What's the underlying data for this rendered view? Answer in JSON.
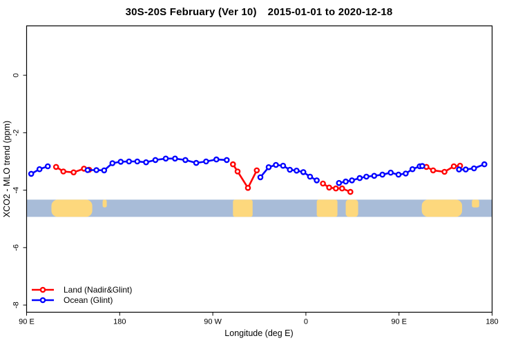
{
  "title": {
    "left": "30S-20S February (Ver 10)",
    "right": "2015-01-01 to 2020-12-18"
  },
  "chart_data": {
    "type": "line",
    "title": "30S-20S February (Ver 10)  2015-01-01 to 2020-12-18",
    "xlabel": "Longitude (deg E)",
    "ylabel": "XCO2 - MLO trend (ppm)",
    "grid": "off",
    "x_axis": {
      "range": [
        90,
        540
      ],
      "ticks": [
        {
          "value": 90,
          "label": "90 E"
        },
        {
          "value": 180,
          "label": "180"
        },
        {
          "value": 270,
          "label": "90 W"
        },
        {
          "value": 360,
          "label": "0"
        },
        {
          "value": 450,
          "label": "90 E"
        },
        {
          "value": 540,
          "label": "180"
        }
      ]
    },
    "y_axis": {
      "range": [
        -8.25,
        1.72
      ],
      "ticks": [
        {
          "value": 0,
          "label": "0"
        },
        {
          "value": -2,
          "label": "-2"
        },
        {
          "value": -4,
          "label": "-4"
        },
        {
          "value": -6,
          "label": "-6"
        },
        {
          "value": -8,
          "label": "-8"
        }
      ]
    },
    "map_strip": {
      "value_top": -4.33,
      "value_bottom": -4.93,
      "ocean_color": "#a8bcd8",
      "land_color": "#fdd87d",
      "land_patches": [
        {
          "name": "australia",
          "from": 114.0,
          "to": 153.5,
          "style": "blob"
        },
        {
          "name": "new-caledonia",
          "from": 163.5,
          "to": 167.5,
          "style": "islet"
        },
        {
          "name": "south-america",
          "from": 289.5,
          "to": 308.5,
          "style": "full"
        },
        {
          "name": "southern-africa",
          "from": 370.5,
          "to": 390.5,
          "style": "full"
        },
        {
          "name": "madagascar",
          "from": 398.5,
          "to": 410.5,
          "style": "narrow"
        },
        {
          "name": "australia-wrap",
          "from": 472.0,
          "to": 511.0,
          "style": "blob"
        },
        {
          "name": "new-caledonia-wrap",
          "from": 520.5,
          "to": 527.5,
          "style": "islet"
        }
      ]
    },
    "series": [
      {
        "name": "Land (Nadir&Glint)",
        "color": "#ff0000",
        "marker": "open-circle",
        "segments": [
          [
            [
              118.5,
              -3.19
            ],
            [
              125.5,
              -3.35
            ],
            [
              135.5,
              -3.38
            ],
            [
              145.5,
              -3.25
            ],
            [
              150.5,
              -3.29
            ]
          ],
          [
            [
              289.5,
              -3.1
            ],
            [
              294.0,
              -3.35
            ],
            [
              304.0,
              -3.92
            ],
            [
              312.5,
              -3.31
            ]
          ],
          [
            [
              376.5,
              -3.77
            ],
            [
              382.5,
              -3.91
            ],
            [
              389.0,
              -3.94
            ],
            [
              395.0,
              -3.94
            ],
            [
              403.0,
              -4.06
            ]
          ],
          [
            [
              476.5,
              -3.19
            ],
            [
              483.0,
              -3.31
            ],
            [
              494.0,
              -3.36
            ],
            [
              503.0,
              -3.17
            ],
            [
              509.0,
              -3.15
            ]
          ]
        ]
      },
      {
        "name": "Ocean (Glint)",
        "color": "#0000ff",
        "marker": "open-circle",
        "segments": [
          [
            [
              94.5,
              -3.43
            ],
            [
              102.5,
              -3.27
            ],
            [
              110.5,
              -3.17
            ]
          ],
          [
            [
              149.0,
              -3.3
            ],
            [
              157.5,
              -3.3
            ],
            [
              165.0,
              -3.31
            ],
            [
              173.0,
              -3.06
            ],
            [
              181.0,
              -3.01
            ],
            [
              189.0,
              -3.0
            ],
            [
              197.0,
              -3.0
            ],
            [
              205.5,
              -3.03
            ],
            [
              214.5,
              -2.95
            ],
            [
              224.5,
              -2.9
            ],
            [
              233.5,
              -2.9
            ],
            [
              243.5,
              -2.95
            ],
            [
              254.0,
              -3.05
            ],
            [
              263.5,
              -3.0
            ],
            [
              273.5,
              -2.93
            ],
            [
              283.5,
              -2.95
            ]
          ],
          [
            [
              316.0,
              -3.55
            ],
            [
              324.0,
              -3.2
            ],
            [
              331.0,
              -3.12
            ],
            [
              338.0,
              -3.15
            ],
            [
              344.5,
              -3.29
            ],
            [
              351.0,
              -3.32
            ],
            [
              357.5,
              -3.37
            ],
            [
              364.0,
              -3.53
            ],
            [
              370.5,
              -3.66
            ]
          ],
          [
            [
              392.0,
              -3.75
            ],
            [
              398.5,
              -3.7
            ],
            [
              404.5,
              -3.66
            ],
            [
              412.0,
              -3.58
            ],
            [
              418.5,
              -3.53
            ],
            [
              426.0,
              -3.5
            ],
            [
              434.0,
              -3.46
            ],
            [
              442.0,
              -3.39
            ],
            [
              449.5,
              -3.46
            ],
            [
              456.5,
              -3.42
            ],
            [
              463.0,
              -3.27
            ],
            [
              470.0,
              -3.17
            ],
            [
              472.5,
              -3.16
            ]
          ],
          [
            [
              508.0,
              -3.28
            ],
            [
              514.5,
              -3.28
            ],
            [
              522.5,
              -3.24
            ],
            [
              532.5,
              -3.1
            ]
          ]
        ]
      }
    ],
    "legend": {
      "position": "bottom-left"
    }
  }
}
